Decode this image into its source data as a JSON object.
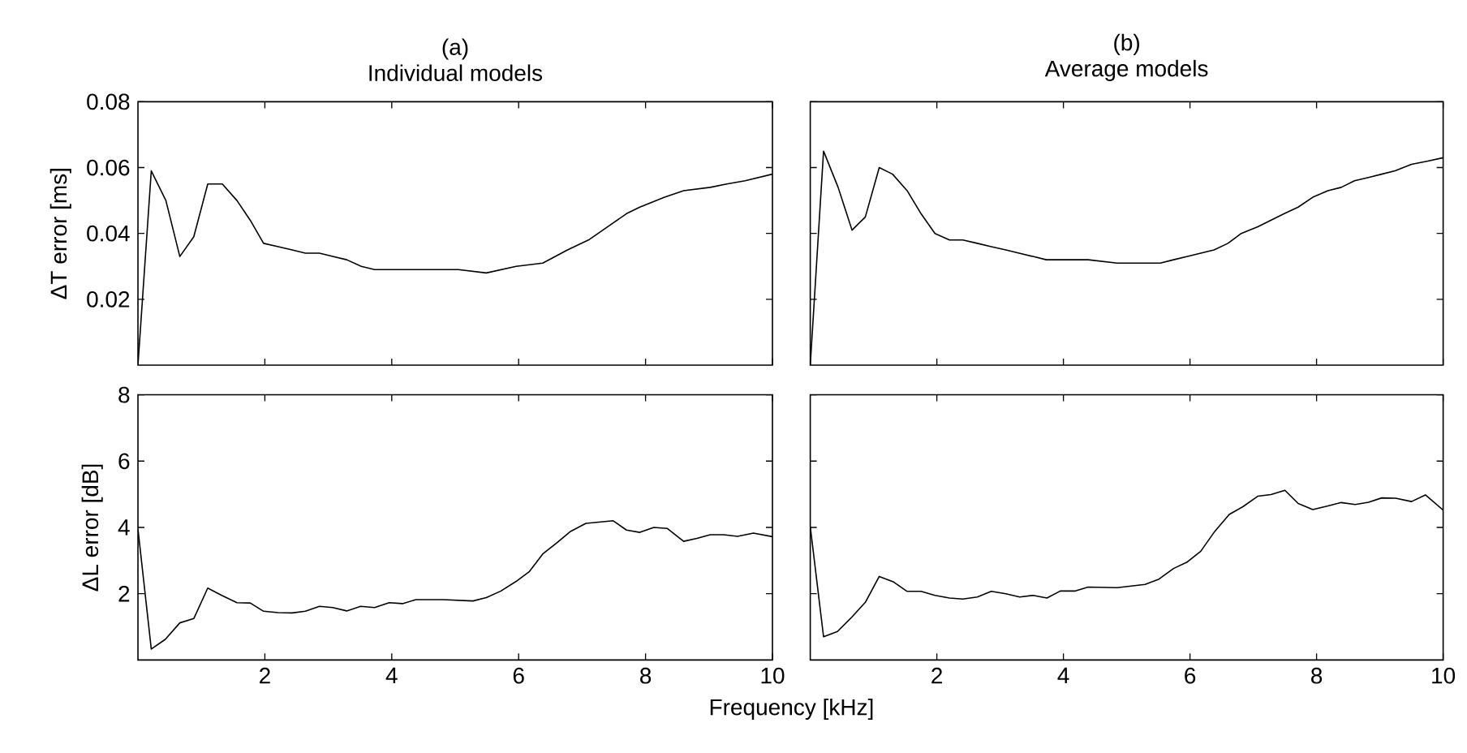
{
  "chart_data": [
    {
      "type": "line",
      "title": "(a)",
      "subtitle": "Individual models",
      "ylabel": "ΔT error [ms]",
      "color": "#000000",
      "xlim": [
        0,
        10
      ],
      "ylim": [
        0,
        0.08
      ],
      "xticks": [
        2,
        4,
        6,
        8,
        10
      ],
      "yticks": [
        0.02,
        0.04,
        0.06,
        0.08
      ],
      "tick_labels": "y",
      "x": [
        0,
        0.21,
        0.44,
        0.66,
        0.88,
        1.1,
        1.33,
        1.56,
        1.77,
        1.98,
        2.21,
        2.43,
        2.64,
        2.86,
        3.07,
        3.29,
        3.52,
        3.73,
        3.96,
        4.38,
        4.81,
        5.05,
        5.49,
        5.96,
        6.38,
        6.77,
        7.1,
        7.4,
        7.7,
        7.91,
        8.3,
        8.6,
        9.02,
        9.28,
        9.57,
        10
      ],
      "values": [
        0,
        0.059,
        0.05,
        0.033,
        0.039,
        0.055,
        0.055,
        0.05,
        0.044,
        0.037,
        0.036,
        0.035,
        0.034,
        0.034,
        0.033,
        0.032,
        0.03,
        0.029,
        0.029,
        0.029,
        0.029,
        0.029,
        0.028,
        0.03,
        0.031,
        0.035,
        0.038,
        0.042,
        0.046,
        0.048,
        0.051,
        0.053,
        0.054,
        0.055,
        0.056,
        0.058
      ]
    },
    {
      "type": "line",
      "title": "(b)",
      "subtitle": "Average models",
      "color": "#000000",
      "xlim": [
        0,
        10
      ],
      "ylim": [
        0,
        0.08
      ],
      "xticks": [
        2,
        4,
        6,
        8,
        10
      ],
      "yticks": [
        0.02,
        0.04,
        0.06,
        0.08
      ],
      "tick_labels": false,
      "x": [
        0,
        0.21,
        0.44,
        0.66,
        0.87,
        1.09,
        1.3,
        1.53,
        1.75,
        1.97,
        2.2,
        2.41,
        2.64,
        2.86,
        3.09,
        3.3,
        3.52,
        3.73,
        3.95,
        4.39,
        4.85,
        5.06,
        5.53,
        5.74,
        5.96,
        6.17,
        6.38,
        6.6,
        6.81,
        7.07,
        7.49,
        7.71,
        7.94,
        8.18,
        8.39,
        8.6,
        8.82,
        9.03,
        9.24,
        9.5,
        9.76,
        10
      ],
      "values": [
        0,
        0.065,
        0.054,
        0.041,
        0.045,
        0.06,
        0.058,
        0.053,
        0.046,
        0.04,
        0.038,
        0.038,
        0.037,
        0.036,
        0.035,
        0.034,
        0.033,
        0.032,
        0.032,
        0.032,
        0.031,
        0.031,
        0.031,
        0.032,
        0.033,
        0.034,
        0.035,
        0.037,
        0.04,
        0.042,
        0.046,
        0.048,
        0.051,
        0.053,
        0.054,
        0.056,
        0.057,
        0.058,
        0.059,
        0.061,
        0.062,
        0.063
      ]
    },
    {
      "type": "line",
      "xlabel": "Frequency [kHz]",
      "ylabel": "ΔL error [dB]",
      "color": "#000000",
      "xlim": [
        0,
        10
      ],
      "ylim": [
        0,
        8
      ],
      "xticks": [
        2,
        4,
        6,
        8,
        10
      ],
      "yticks": [
        2,
        4,
        6,
        8
      ],
      "x": [
        0,
        0.21,
        0.43,
        0.66,
        0.88,
        1.1,
        1.32,
        1.56,
        1.77,
        1.98,
        2.21,
        2.43,
        2.64,
        2.86,
        3.07,
        3.29,
        3.51,
        3.73,
        3.96,
        4.17,
        4.38,
        4.81,
        5.28,
        5.49,
        5.72,
        5.96,
        6.17,
        6.38,
        6.6,
        6.81,
        7.06,
        7.49,
        7.7,
        7.91,
        8.13,
        8.34,
        8.6,
        8.81,
        9.02,
        9.23,
        9.45,
        9.7,
        10
      ],
      "values": [
        3.95,
        0.33,
        0.62,
        1.12,
        1.25,
        2.17,
        1.95,
        1.73,
        1.72,
        1.47,
        1.43,
        1.42,
        1.47,
        1.62,
        1.58,
        1.48,
        1.62,
        1.58,
        1.73,
        1.7,
        1.82,
        1.82,
        1.78,
        1.88,
        2.08,
        2.37,
        2.67,
        3.2,
        3.53,
        3.87,
        4.12,
        4.2,
        3.92,
        3.85,
        4.0,
        3.97,
        3.58,
        3.67,
        3.78,
        3.78,
        3.73,
        3.83,
        3.72
      ]
    },
    {
      "type": "line",
      "color": "#000000",
      "xlim": [
        0,
        10
      ],
      "ylim": [
        0,
        8
      ],
      "xticks": [
        2,
        4,
        6,
        8,
        10
      ],
      "yticks": [
        2,
        4,
        6,
        8
      ],
      "tick_labels": "x",
      "x": [
        0,
        0.21,
        0.43,
        0.66,
        0.87,
        1.09,
        1.31,
        1.53,
        1.75,
        1.97,
        2.2,
        2.41,
        2.64,
        2.86,
        3.09,
        3.31,
        3.52,
        3.74,
        3.95,
        4.18,
        4.39,
        4.85,
        5.29,
        5.51,
        5.74,
        5.96,
        6.17,
        6.38,
        6.62,
        6.84,
        7.07,
        7.28,
        7.5,
        7.71,
        7.94,
        8.18,
        8.39,
        8.61,
        8.82,
        9.03,
        9.25,
        9.5,
        9.72,
        10
      ],
      "values": [
        4.02,
        0.7,
        0.86,
        1.3,
        1.74,
        2.52,
        2.36,
        2.07,
        2.07,
        1.95,
        1.87,
        1.84,
        1.9,
        2.07,
        2.0,
        1.9,
        1.95,
        1.87,
        2.08,
        2.08,
        2.2,
        2.18,
        2.28,
        2.44,
        2.76,
        2.96,
        3.28,
        3.85,
        4.39,
        4.63,
        4.94,
        4.99,
        5.12,
        4.72,
        4.54,
        4.65,
        4.75,
        4.69,
        4.76,
        4.89,
        4.88,
        4.78,
        4.98,
        4.52
      ]
    }
  ]
}
